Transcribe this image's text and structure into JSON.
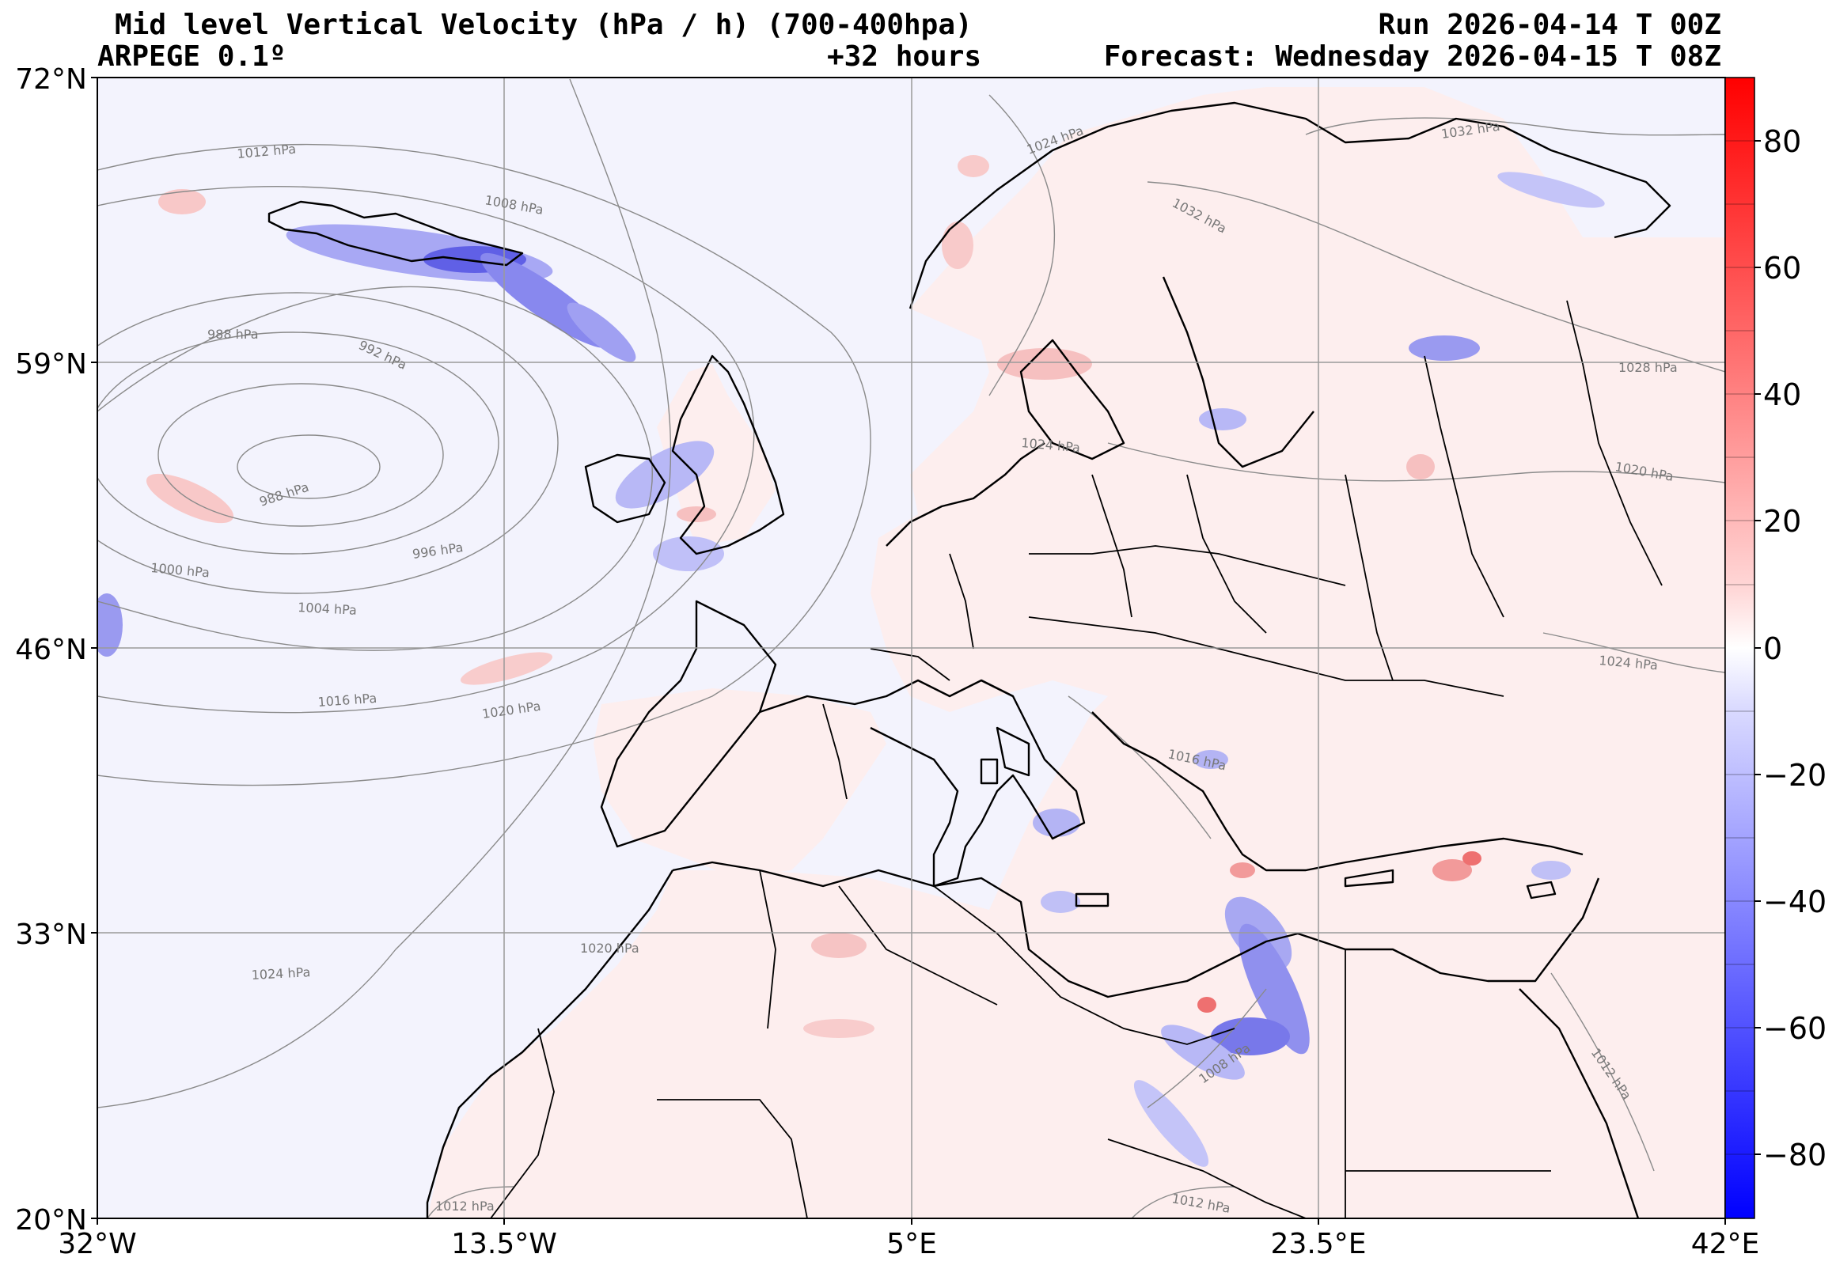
{
  "header": {
    "title": "Mid level Vertical Velocity (hPa / h)  (700-400hpa)",
    "model": "ARPEGE 0.1º",
    "lead": "+32 hours",
    "run": "Run 2026-04-14 T 00Z",
    "forecast": "Forecast: Wednesday 2026-04-15 T 08Z"
  },
  "map": {
    "lon_range": [
      -32,
      42
    ],
    "lat_range": [
      20,
      72
    ],
    "lon_ticks": [
      "32°W",
      "13.5°W",
      "5°E",
      "23.5°E",
      "42°E"
    ],
    "lat_ticks": [
      "72°N",
      "59°N",
      "46°N",
      "33°N",
      "20°N"
    ],
    "isobar_labels": [
      "1012 hPa",
      "1008 hPa",
      "1024 hPa",
      "1032 hPa",
      "1032 hPa",
      "988 hPa",
      "992 hPa",
      "988 hPa",
      "996 hPa",
      "1000 hPa",
      "1004 hPa",
      "1016 hPa",
      "1020 hPa",
      "1024 hPa",
      "1016 hPa",
      "1028 hPa",
      "1020 hPa",
      "1024 hPa",
      "1020 hPa",
      "1024 hPa",
      "1008 hPa",
      "1012 hPa",
      "1012 hPa",
      "1012 hPa"
    ],
    "colors": {
      "ocean_tint": "#f3f3fd",
      "land_tint": "#fdeeee",
      "ascent": "#3a3ad8",
      "descent": "#e84c4c",
      "isobar": "#8a8a8a",
      "coast": "#000000"
    }
  },
  "colorbar": {
    "ticks": [
      "80",
      "60",
      "40",
      "20",
      "0",
      "−20",
      "−40",
      "−60",
      "−80"
    ],
    "range": [
      -90,
      90
    ]
  }
}
